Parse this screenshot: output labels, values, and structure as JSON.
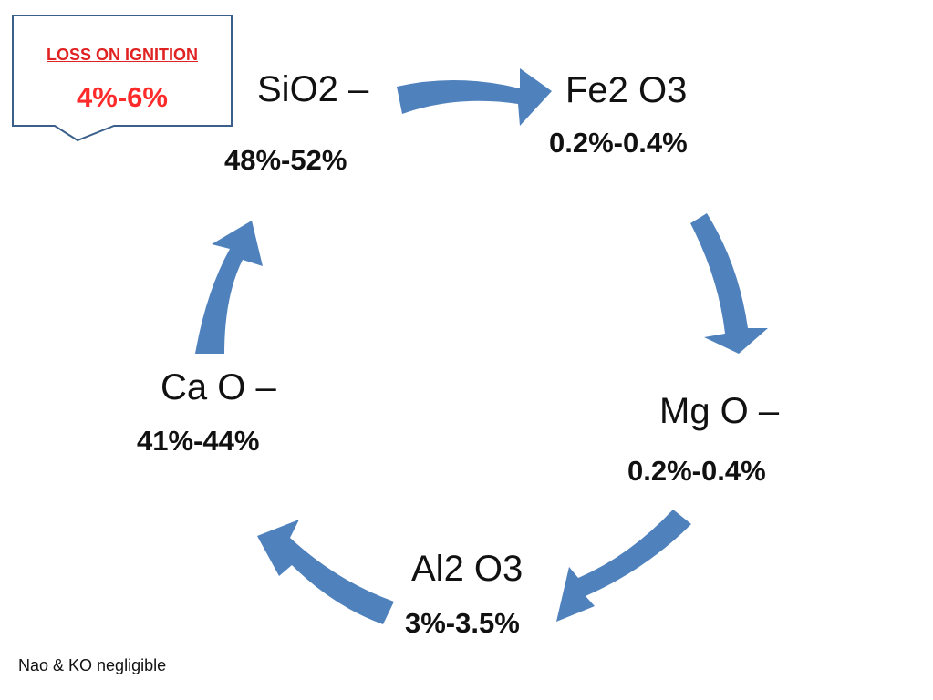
{
  "colors": {
    "arrow": "#4f81bd",
    "callout_border": "#3a5f8a",
    "callout_text": "#ff2a2a",
    "text": "#111111"
  },
  "callout": {
    "title": "LOSS ON IGNITION",
    "value": "4%-6%"
  },
  "components": [
    {
      "name": "SiO2 –",
      "value": "48%-52%"
    },
    {
      "name": "Fe2 O3",
      "value": "0.2%-0.4%"
    },
    {
      "name": "Mg O –",
      "value": "0.2%-0.4%"
    },
    {
      "name": "Al2 O3",
      "value": "3%-3.5%"
    },
    {
      "name": "Ca O –",
      "value": "41%-44%"
    }
  ],
  "cycle": {
    "arrows": [
      {
        "from": "SiO2",
        "to": "Fe2 O3",
        "icon": "right-arrow-icon"
      },
      {
        "from": "Fe2 O3",
        "to": "Mg O",
        "icon": "down-arrow-icon"
      },
      {
        "from": "Mg O",
        "to": "Al2 O3",
        "icon": "down-left-arrow-icon"
      },
      {
        "from": "Al2 O3",
        "to": "Ca O",
        "icon": "up-left-arrow-icon"
      },
      {
        "from": "Ca O",
        "to": "SiO2",
        "icon": "up-arrow-icon"
      }
    ]
  },
  "footnote": "Nao & KO  negligible"
}
